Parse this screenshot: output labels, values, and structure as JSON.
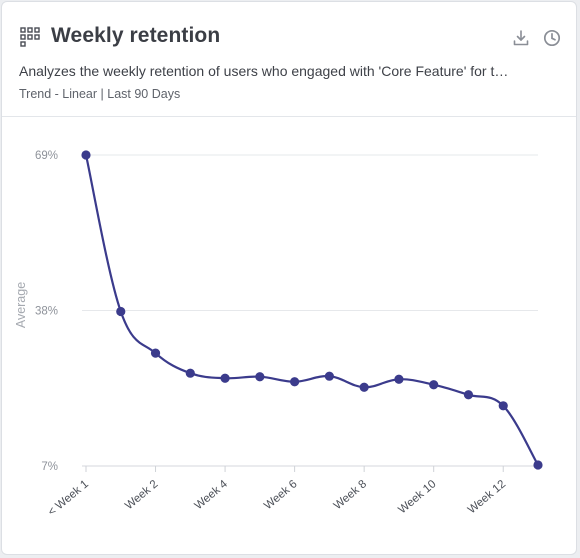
{
  "widget": {
    "title": "Weekly retention",
    "description": "Analyzes the weekly retention of users who engaged with 'Core Feature' for t…",
    "meta": "Trend - Linear | Last 90 Days",
    "icons": [
      "grid-icon",
      "download-icon",
      "history-icon"
    ]
  },
  "chart_data": {
    "type": "line",
    "ylabel": "Average",
    "yticks": [
      "69%",
      "38%",
      "7%"
    ],
    "ylim": [
      7,
      69
    ],
    "grid": true,
    "x_tick_labels": [
      "< Week 1",
      "Week 2",
      "Week 4",
      "Week 6",
      "Week 8",
      "Week 10",
      "Week 12"
    ],
    "series": [
      {
        "color": "#3b3b8c",
        "x": [
          "< Week 1",
          "Week 1",
          "Week 2",
          "Week 3",
          "Week 4",
          "Week 5",
          "Week 6",
          "Week 7",
          "Week 8",
          "Week 9",
          "Week 10",
          "Week 11",
          "Week 12",
          "Week 13"
        ],
        "values": [
          69,
          37.8,
          29.5,
          25.5,
          24.5,
          24.8,
          23.8,
          24.9,
          22.7,
          24.3,
          23.2,
          21.2,
          19.0,
          7.2
        ]
      }
    ]
  }
}
